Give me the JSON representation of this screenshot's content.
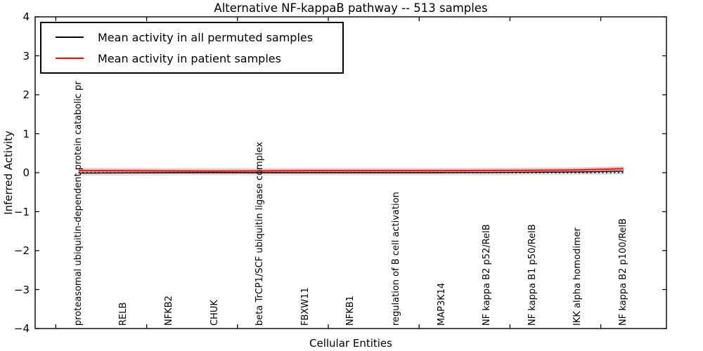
{
  "title": "Alternative NF-kappaB pathway -- 513 samples",
  "axes": {
    "xlabel": "Cellular Entities",
    "ylabel": "Inferred Activity"
  },
  "legend": {
    "items": [
      {
        "label": "Mean activity in all permuted samples",
        "color": "#000000"
      },
      {
        "label": "Mean activity in patient samples",
        "color": "#ff0000"
      }
    ]
  },
  "chart_data": {
    "type": "line",
    "title": "Alternative NF-kappaB pathway -- 513 samples",
    "xlabel": "Cellular Entities",
    "ylabel": "Inferred Activity",
    "ylim": [
      -4,
      4
    ],
    "grid": false,
    "legend_position": "upper left",
    "yticks": [
      {
        "v": 4,
        "label": "4"
      },
      {
        "v": 3,
        "label": "3"
      },
      {
        "v": 2,
        "label": "2"
      },
      {
        "v": 1,
        "label": "1"
      },
      {
        "v": 0,
        "label": "0"
      },
      {
        "v": -1,
        "label": "−1"
      },
      {
        "v": -2,
        "label": "−2"
      },
      {
        "v": -3,
        "label": "−3"
      },
      {
        "v": -4,
        "label": "−4"
      }
    ],
    "x_tick_positions": [
      -0.5,
      1.5,
      3.5,
      5.5,
      7.5,
      9.5,
      11.5
    ],
    "categories": [
      "proteasomal ubiquitin-dependent protein catabolic pr",
      "RELB",
      "NFKB2",
      "CHUK",
      "beta TrCP1/SCF ubiquitin ligase complex",
      "FBXW11",
      "NFKB1",
      "regulation of B cell activation",
      "MAP3K14",
      "NF kappa B2 p52/RelB",
      "NF kappa B1 p50/RelB",
      "IKK alpha homodimer",
      "NF kappa B2 p100/RelB"
    ],
    "series": [
      {
        "name": "Mean activity in all permuted samples",
        "color": "#000000",
        "style": "solid",
        "values": [
          -0.01,
          -0.005,
          0.0,
          0.0,
          0.0,
          0.0,
          0.0,
          0.0,
          0.0,
          0.005,
          0.01,
          0.02,
          0.04
        ]
      },
      {
        "name": "Mean activity in patient samples",
        "color": "#ff0000",
        "style": "solid",
        "values": [
          0.05,
          0.05,
          0.045,
          0.04,
          0.045,
          0.05,
          0.05,
          0.05,
          0.05,
          0.055,
          0.06,
          0.07,
          0.1
        ]
      },
      {
        "name": "zero reference",
        "color": "#000000",
        "style": "dotted",
        "values": [
          0,
          0,
          0,
          0,
          0,
          0,
          0,
          0,
          0,
          0,
          0,
          0,
          0
        ]
      }
    ],
    "band": {
      "color": "#e0e0e0",
      "upper": [
        0.13,
        0.125,
        0.12,
        0.12,
        0.12,
        0.12,
        0.12,
        0.12,
        0.12,
        0.125,
        0.13,
        0.14,
        0.17
      ],
      "lower": [
        -0.08,
        -0.075,
        -0.07,
        -0.07,
        -0.07,
        -0.07,
        -0.07,
        -0.07,
        -0.07,
        -0.07,
        -0.065,
        -0.06,
        -0.05
      ]
    }
  }
}
